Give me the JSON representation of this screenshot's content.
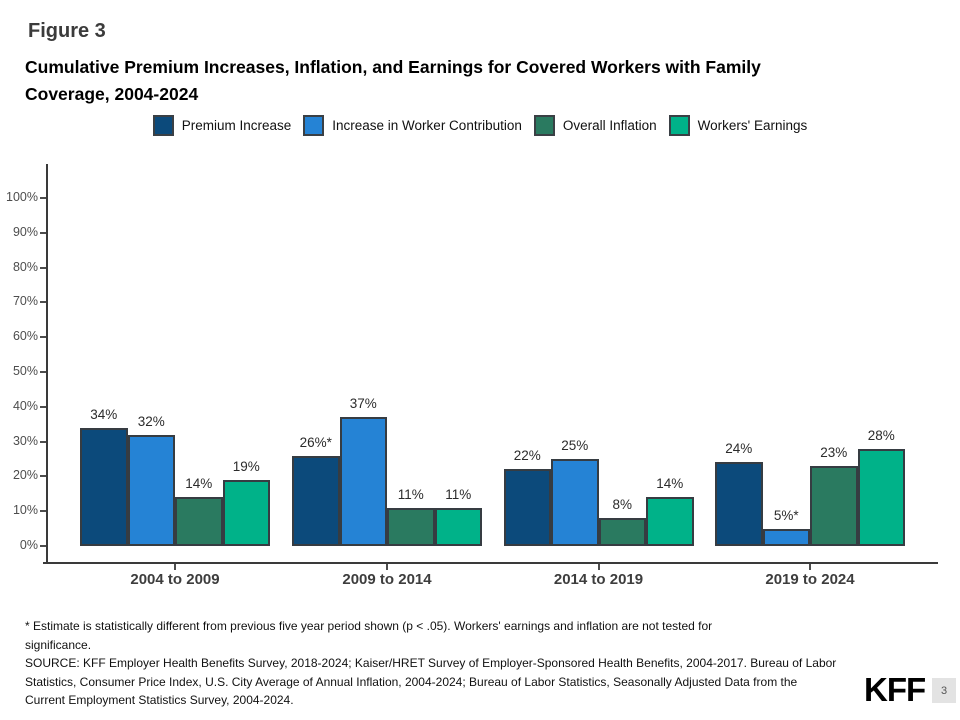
{
  "figure_label": "Figure 3",
  "title_lines": [
    "Cumulative Premium Increases, Inflation, and Earnings for Covered Workers with Family",
    "Coverage, 2004-2024"
  ],
  "legend_items": [
    {
      "label": "Premium Increase",
      "color": "#0c4a7b"
    },
    {
      "label": "Increase in Worker Contribution",
      "color": "#2583d5"
    },
    {
      "label": "Overall Inflation",
      "color": "#2a7a60"
    },
    {
      "label": "Workers' Earnings",
      "color": "#00b289"
    }
  ],
  "chart_data": {
    "type": "bar",
    "title": "Cumulative Premium Increases, Inflation, and Earnings for Covered Workers with Family Coverage, 2004-2024",
    "categories": [
      "2004 to 2009",
      "2009 to 2014",
      "2014 to 2019",
      "2019 to 2024"
    ],
    "series": [
      {
        "name": "Premium Increase",
        "color": "#0c4a7b",
        "values": [
          34,
          26,
          22,
          24
        ],
        "labels": [
          "34%",
          "26%*",
          "22%",
          "24%"
        ]
      },
      {
        "name": "Increase in Worker Contribution",
        "color": "#2583d5",
        "values": [
          32,
          37,
          25,
          5
        ],
        "labels": [
          "32%",
          "37%",
          "25%",
          "5%*"
        ]
      },
      {
        "name": "Overall Inflation",
        "color": "#2a7a60",
        "values": [
          14,
          11,
          8,
          23
        ],
        "labels": [
          "14%",
          "11%",
          "8%",
          "23%"
        ]
      },
      {
        "name": "Workers' Earnings",
        "color": "#00b289",
        "values": [
          19,
          11,
          14,
          28
        ],
        "labels": [
          "19%",
          "11%",
          "14%",
          "28%"
        ]
      }
    ],
    "y_ticks": [
      "0%",
      "10%",
      "20%",
      "30%",
      "40%",
      "50%",
      "60%",
      "70%",
      "80%",
      "90%",
      "100%"
    ],
    "ylim": [
      0,
      112
    ],
    "xlabel": "",
    "ylabel": "",
    "grid": false,
    "legend_position": "top"
  },
  "footnote_lines": [
    "* Estimate is statistically different from previous five year period shown (p < .05). Workers' earnings and inflation are not tested for",
    "significance."
  ],
  "source_lines": [
    "SOURCE: KFF Employer Health Benefits Survey, 2018-2024; Kaiser/HRET Survey of Employer-Sponsored Health Benefits, 2004-2017. Bureau of Labor",
    "Statistics, Consumer Price Index, U.S. City Average of Annual Inflation, 2004-2024; Bureau of Labor Statistics, Seasonally Adjusted Data from the",
    "Current Employment Statistics Survey, 2004-2024."
  ],
  "logo_text": "KFF",
  "page_number": "3"
}
